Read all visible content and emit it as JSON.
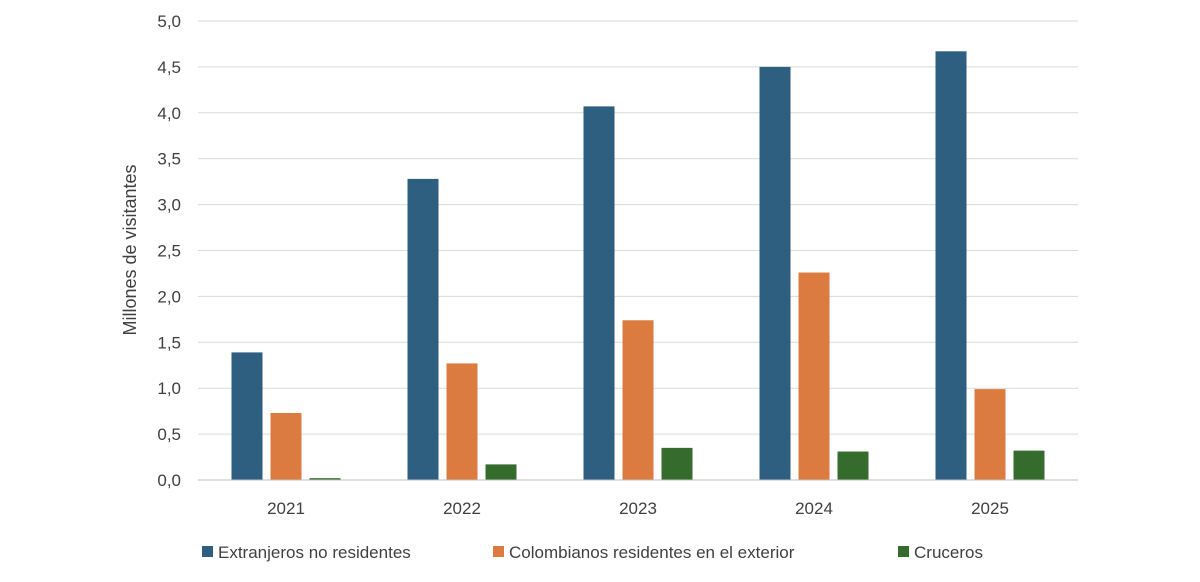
{
  "chart_data": {
    "type": "bar",
    "title": "",
    "xlabel": "",
    "ylabel": "Millones de visitantes",
    "ylim": [
      0,
      5
    ],
    "yticks": [
      "0,0",
      "0,5",
      "1,0",
      "1,5",
      "2,0",
      "2,5",
      "3,0",
      "3,5",
      "4,0",
      "4,5",
      "5,0"
    ],
    "categories": [
      "2021",
      "2022",
      "2023",
      "2024",
      "2025"
    ],
    "series": [
      {
        "name": "Extranjeros no residentes",
        "color": "#2e5f80",
        "values": [
          1.39,
          3.28,
          4.07,
          4.5,
          4.67
        ]
      },
      {
        "name": "Colombianos residentes en el exterior",
        "color": "#db7b40",
        "values": [
          0.73,
          1.27,
          1.74,
          2.26,
          0.99
        ]
      },
      {
        "name": "Cruceros",
        "color": "#356b2c",
        "values": [
          0.02,
          0.17,
          0.35,
          0.31,
          0.32
        ]
      }
    ],
    "grid": true,
    "legend_position": "bottom"
  }
}
